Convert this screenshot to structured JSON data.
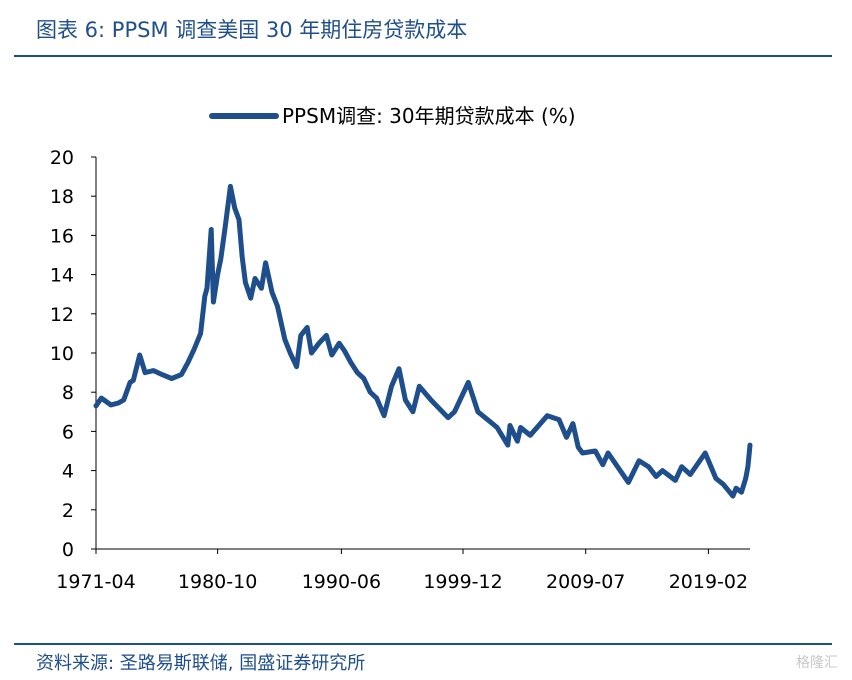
{
  "figure": {
    "title": "图表 6:  PPSM 调查美国 30 年期住房贷款成本",
    "source": "资料来源:  圣路易斯联储,  国盛证券研究所",
    "watermark": "格隆汇",
    "accent_color": "#1f4e8c"
  },
  "chart_data": {
    "type": "line",
    "title": "",
    "xlabel": "",
    "ylabel": "",
    "ylim": [
      0,
      20
    ],
    "yticks": [
      "0",
      "2",
      "4",
      "6",
      "8",
      "10",
      "12",
      "14",
      "16",
      "18",
      "20"
    ],
    "xlim": [
      "1971-04",
      "2022-05"
    ],
    "xticks": [
      "1971-04",
      "1980-10",
      "1990-06",
      "1999-12",
      "2009-07",
      "2019-02"
    ],
    "grid": false,
    "legend_position": "top-center",
    "series": [
      {
        "name": "PPSM调查: 30年期贷款成本 (%)",
        "color": "#1f4e8c",
        "points": [
          [
            "1971-04",
            7.3
          ],
          [
            "1971-09",
            7.7
          ],
          [
            "1972-06",
            7.35
          ],
          [
            "1973-01",
            7.45
          ],
          [
            "1973-06",
            7.6
          ],
          [
            "1973-12",
            8.5
          ],
          [
            "1974-03",
            8.6
          ],
          [
            "1974-09",
            9.9
          ],
          [
            "1975-02",
            9.0
          ],
          [
            "1975-10",
            9.1
          ],
          [
            "1976-06",
            8.9
          ],
          [
            "1977-03",
            8.7
          ],
          [
            "1977-12",
            8.9
          ],
          [
            "1978-06",
            9.5
          ],
          [
            "1978-12",
            10.2
          ],
          [
            "1979-06",
            11.0
          ],
          [
            "1979-10",
            12.9
          ],
          [
            "1979-12",
            13.3
          ],
          [
            "1980-04",
            16.3
          ],
          [
            "1980-06",
            12.6
          ],
          [
            "1980-10",
            14.0
          ],
          [
            "1981-01",
            14.8
          ],
          [
            "1981-05",
            16.4
          ],
          [
            "1981-10",
            18.5
          ],
          [
            "1982-02",
            17.4
          ],
          [
            "1982-06",
            16.8
          ],
          [
            "1982-09",
            14.9
          ],
          [
            "1982-12",
            13.6
          ],
          [
            "1983-05",
            12.8
          ],
          [
            "1983-09",
            13.8
          ],
          [
            "1984-03",
            13.3
          ],
          [
            "1984-07",
            14.6
          ],
          [
            "1985-01",
            13.1
          ],
          [
            "1985-06",
            12.4
          ],
          [
            "1986-01",
            10.7
          ],
          [
            "1986-06",
            10.0
          ],
          [
            "1986-12",
            9.3
          ],
          [
            "1987-04",
            10.9
          ],
          [
            "1987-10",
            11.3
          ],
          [
            "1988-02",
            10.0
          ],
          [
            "1988-09",
            10.5
          ],
          [
            "1989-04",
            10.9
          ],
          [
            "1989-09",
            9.9
          ],
          [
            "1990-04",
            10.5
          ],
          [
            "1990-09",
            10.1
          ],
          [
            "1991-03",
            9.5
          ],
          [
            "1991-09",
            9.0
          ],
          [
            "1992-03",
            8.7
          ],
          [
            "1992-09",
            8.0
          ],
          [
            "1993-03",
            7.7
          ],
          [
            "1993-10",
            6.8
          ],
          [
            "1994-05",
            8.3
          ],
          [
            "1994-12",
            9.2
          ],
          [
            "1995-06",
            7.6
          ],
          [
            "1996-01",
            7.0
          ],
          [
            "1996-07",
            8.3
          ],
          [
            "1997-06",
            7.6
          ],
          [
            "1998-10",
            6.7
          ],
          [
            "1999-04",
            7.0
          ],
          [
            "2000-05",
            8.5
          ],
          [
            "2001-02",
            7.0
          ],
          [
            "2001-11",
            6.6
          ],
          [
            "2002-08",
            6.2
          ],
          [
            "2003-06",
            5.3
          ],
          [
            "2003-08",
            6.3
          ],
          [
            "2004-03",
            5.5
          ],
          [
            "2004-06",
            6.2
          ],
          [
            "2005-03",
            5.8
          ],
          [
            "2006-07",
            6.8
          ],
          [
            "2007-06",
            6.6
          ],
          [
            "2008-01",
            5.7
          ],
          [
            "2008-07",
            6.4
          ],
          [
            "2008-12",
            5.2
          ],
          [
            "2009-04",
            4.9
          ],
          [
            "2010-04",
            5.0
          ],
          [
            "2010-11",
            4.3
          ],
          [
            "2011-04",
            4.9
          ],
          [
            "2012-11",
            3.4
          ],
          [
            "2013-09",
            4.5
          ],
          [
            "2014-06",
            4.2
          ],
          [
            "2015-01",
            3.7
          ],
          [
            "2015-07",
            4.0
          ],
          [
            "2016-07",
            3.5
          ],
          [
            "2017-01",
            4.2
          ],
          [
            "2017-09",
            3.8
          ],
          [
            "2018-11",
            4.9
          ],
          [
            "2019-09",
            3.6
          ],
          [
            "2020-04",
            3.3
          ],
          [
            "2021-01",
            2.7
          ],
          [
            "2021-04",
            3.1
          ],
          [
            "2021-09",
            2.9
          ],
          [
            "2022-01",
            3.6
          ],
          [
            "2022-03",
            4.2
          ],
          [
            "2022-05",
            5.3
          ]
        ]
      }
    ]
  }
}
